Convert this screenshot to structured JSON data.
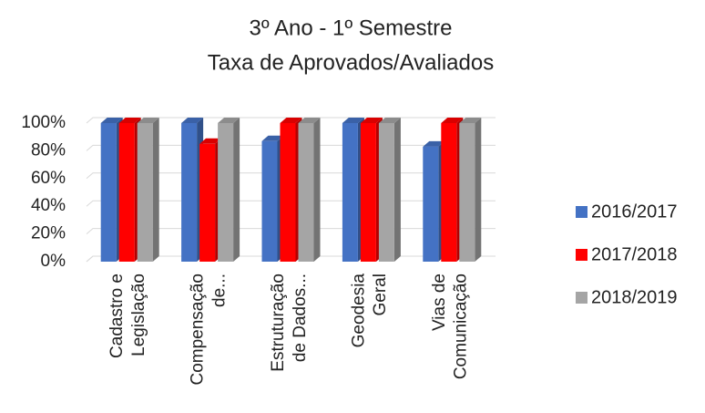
{
  "chart_data": {
    "type": "bar3d",
    "title": [
      "3º Ano - 1º Semestre",
      "Taxa de Aprovados/Avaliados"
    ],
    "categories": [
      [
        "Cadastro e",
        "Legislação"
      ],
      [
        "Compensação",
        "de..."
      ],
      [
        "Estruturação",
        "de Dados..."
      ],
      [
        "Geodesia",
        "Geral"
      ],
      [
        "Vias de",
        "Comunicação"
      ]
    ],
    "series": [
      {
        "name": "2016/2017",
        "color": "#4472c4",
        "values": [
          100,
          100,
          87,
          100,
          83
        ]
      },
      {
        "name": "2017/2018",
        "color": "#ff0000",
        "values": [
          100,
          85,
          100,
          100,
          100
        ]
      },
      {
        "name": "2018/2019",
        "color": "#a5a5a5",
        "values": [
          100,
          100,
          100,
          100,
          100
        ]
      }
    ],
    "ylim": [
      0,
      100
    ],
    "yticks": [
      {
        "value": 0,
        "label": "0%"
      },
      {
        "value": 20,
        "label": "20%"
      },
      {
        "value": 40,
        "label": "40%"
      },
      {
        "value": 60,
        "label": "60%"
      },
      {
        "value": 80,
        "label": "80%"
      },
      {
        "value": 100,
        "label": "100%"
      }
    ],
    "grid": true,
    "legend": "right"
  }
}
